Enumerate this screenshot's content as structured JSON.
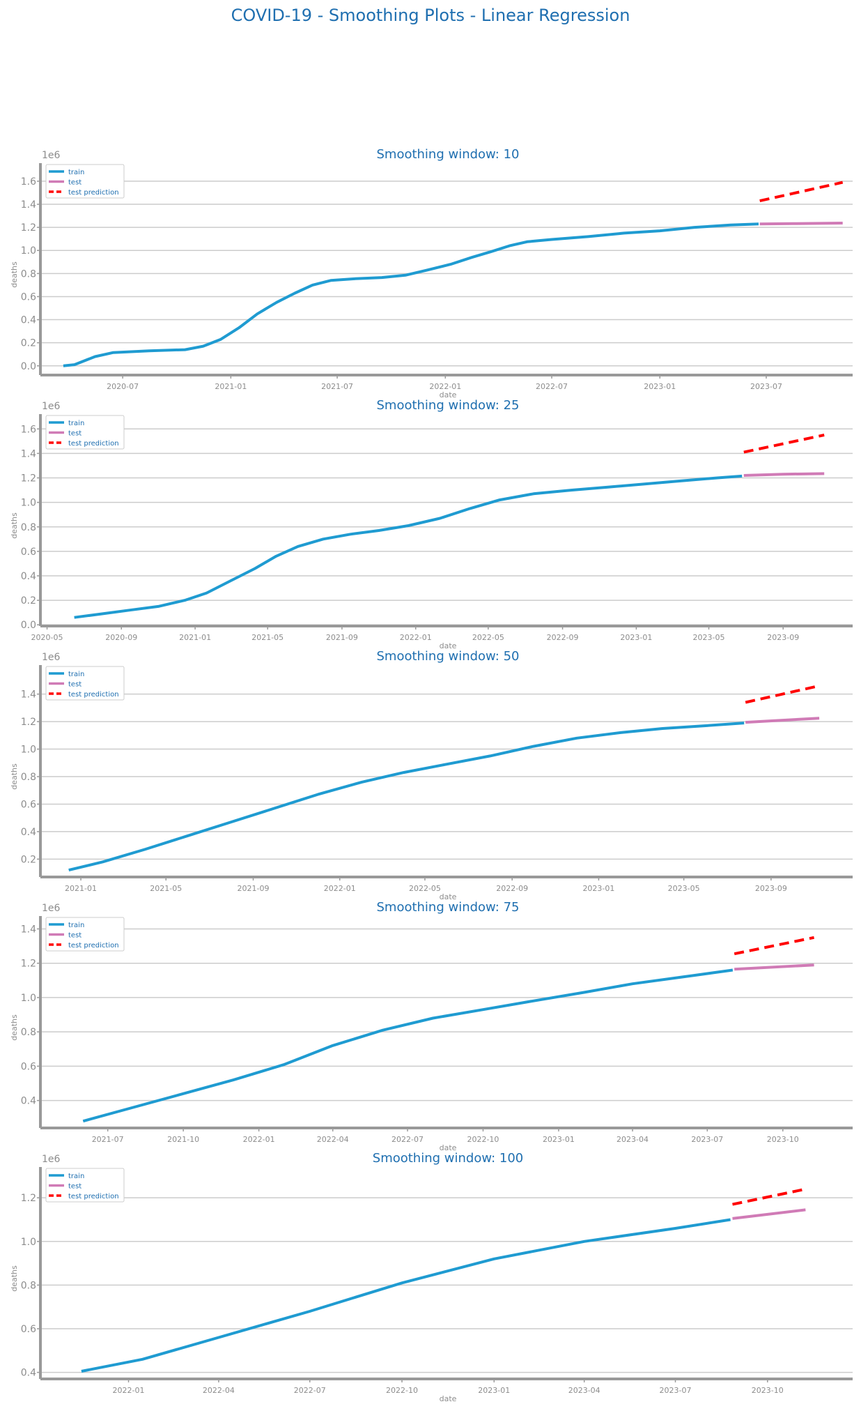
{
  "title": "COVID-19 - Smoothing Plots - Linear Regression",
  "colors": {
    "train": "#1f9bd1",
    "test": "#d07bb6",
    "test_prediction": "#ff0000",
    "title": "#1f6fb0",
    "axis": "#999999",
    "grid": "#cccccc"
  },
  "chart_data": [
    {
      "type": "line",
      "title": "Smoothing window: 10",
      "xlabel": "date",
      "ylabel": "deaths",
      "y_exponent": "1e6",
      "xlim": [
        "2020-02-12",
        "2023-11-25"
      ],
      "ylim": [
        -0.08,
        1.66
      ],
      "x_ticks": [
        "2020-07",
        "2021-01",
        "2021-07",
        "2022-01",
        "2022-07",
        "2023-01",
        "2023-07"
      ],
      "y_ticks": [
        0.0,
        0.2,
        0.4,
        0.6,
        0.8,
        1.0,
        1.2,
        1.4,
        1.6
      ],
      "y_tick_labels": [
        "0.0",
        "0.2",
        "0.4",
        "0.6",
        "0.8",
        "1.0",
        "1.2",
        "1.4",
        "1.6"
      ],
      "grid": "horizontal",
      "legend_position": "top-left",
      "series": [
        {
          "name": "train",
          "style": "solid",
          "points": [
            [
              "2020-03-22",
              0.0
            ],
            [
              "2020-04-10",
              0.01
            ],
            [
              "2020-05-15",
              0.08
            ],
            [
              "2020-06-15",
              0.115
            ],
            [
              "2020-08-15",
              0.13
            ],
            [
              "2020-10-15",
              0.14
            ],
            [
              "2020-11-15",
              0.17
            ],
            [
              "2020-12-15",
              0.23
            ],
            [
              "2021-01-15",
              0.33
            ],
            [
              "2021-02-15",
              0.45
            ],
            [
              "2021-03-20",
              0.55
            ],
            [
              "2021-04-20",
              0.63
            ],
            [
              "2021-05-20",
              0.7
            ],
            [
              "2021-06-20",
              0.74
            ],
            [
              "2021-08-01",
              0.755
            ],
            [
              "2021-09-15",
              0.765
            ],
            [
              "2021-10-25",
              0.785
            ],
            [
              "2021-12-01",
              0.83
            ],
            [
              "2022-01-10",
              0.88
            ],
            [
              "2022-02-15",
              0.94
            ],
            [
              "2022-03-20",
              0.99
            ],
            [
              "2022-04-20",
              1.04
            ],
            [
              "2022-05-20",
              1.075
            ],
            [
              "2022-07-01",
              1.095
            ],
            [
              "2022-09-01",
              1.12
            ],
            [
              "2022-11-01",
              1.15
            ],
            [
              "2023-01-01",
              1.17
            ],
            [
              "2023-03-01",
              1.2
            ],
            [
              "2023-05-01",
              1.22
            ],
            [
              "2023-06-18",
              1.23
            ]
          ]
        },
        {
          "name": "test",
          "style": "solid",
          "points": [
            [
              "2023-06-20",
              1.23
            ],
            [
              "2023-08-15",
              1.232
            ],
            [
              "2023-11-08",
              1.237
            ]
          ]
        },
        {
          "name": "test prediction",
          "style": "dashed",
          "points": [
            [
              "2023-06-20",
              1.43
            ],
            [
              "2023-11-08",
              1.59
            ]
          ]
        }
      ]
    },
    {
      "type": "line",
      "title": "Smoothing window: 25",
      "xlabel": "date",
      "ylabel": "deaths",
      "y_exponent": "1e6",
      "xlim": [
        "2020-04-20",
        "2023-12-25"
      ],
      "ylim": [
        -0.01,
        1.63
      ],
      "x_ticks": [
        "2020-05",
        "2020-09",
        "2021-01",
        "2021-05",
        "2021-09",
        "2022-01",
        "2022-05",
        "2022-09",
        "2023-01",
        "2023-05",
        "2023-09"
      ],
      "y_ticks": [
        0.0,
        0.2,
        0.4,
        0.6,
        0.8,
        1.0,
        1.2,
        1.4,
        1.6
      ],
      "y_tick_labels": [
        "0.0",
        "0.2",
        "0.4",
        "0.6",
        "0.8",
        "1.0",
        "1.2",
        "1.4",
        "1.6"
      ],
      "grid": "horizontal",
      "legend_position": "top-left",
      "series": [
        {
          "name": "train",
          "style": "solid",
          "points": [
            [
              "2020-06-15",
              0.06
            ],
            [
              "2020-08-01",
              0.09
            ],
            [
              "2020-09-15",
              0.12
            ],
            [
              "2020-11-01",
              0.15
            ],
            [
              "2020-12-15",
              0.2
            ],
            [
              "2021-01-20",
              0.26
            ],
            [
              "2021-03-01",
              0.36
            ],
            [
              "2021-04-10",
              0.46
            ],
            [
              "2021-05-15",
              0.56
            ],
            [
              "2021-06-20",
              0.64
            ],
            [
              "2021-08-01",
              0.7
            ],
            [
              "2021-09-15",
              0.74
            ],
            [
              "2021-11-01",
              0.77
            ],
            [
              "2021-12-20",
              0.81
            ],
            [
              "2022-02-10",
              0.87
            ],
            [
              "2022-04-01",
              0.95
            ],
            [
              "2022-05-20",
              1.02
            ],
            [
              "2022-07-15",
              1.07
            ],
            [
              "2022-09-15",
              1.1
            ],
            [
              "2022-11-15",
              1.125
            ],
            [
              "2023-01-15",
              1.15
            ],
            [
              "2023-03-15",
              1.175
            ],
            [
              "2023-05-15",
              1.2
            ],
            [
              "2023-06-25",
              1.215
            ]
          ]
        },
        {
          "name": "test",
          "style": "solid",
          "points": [
            [
              "2023-06-28",
              1.22
            ],
            [
              "2023-09-01",
              1.23
            ],
            [
              "2023-11-08",
              1.235
            ]
          ]
        },
        {
          "name": "test prediction",
          "style": "dashed",
          "points": [
            [
              "2023-06-28",
              1.41
            ],
            [
              "2023-11-08",
              1.55
            ]
          ]
        }
      ]
    },
    {
      "type": "line",
      "title": "Smoothing window: 50",
      "xlabel": "date",
      "ylabel": "deaths",
      "y_exponent": "1e6",
      "xlim": [
        "2020-11-05",
        "2023-12-25"
      ],
      "ylim": [
        0.07,
        1.53
      ],
      "x_ticks": [
        "2021-01",
        "2021-05",
        "2021-09",
        "2022-01",
        "2022-05",
        "2022-09",
        "2023-01",
        "2023-05",
        "2023-09"
      ],
      "y_ticks": [
        0.2,
        0.4,
        0.6,
        0.8,
        1.0,
        1.2,
        1.4
      ],
      "y_tick_labels": [
        "0.2",
        "0.4",
        "0.6",
        "0.8",
        "1.0",
        "1.2",
        "1.4"
      ],
      "grid": "horizontal",
      "legend_position": "top-left",
      "series": [
        {
          "name": "train",
          "style": "solid",
          "points": [
            [
              "2020-12-15",
              0.12
            ],
            [
              "2021-02-01",
              0.18
            ],
            [
              "2021-04-01",
              0.27
            ],
            [
              "2021-06-01",
              0.37
            ],
            [
              "2021-08-01",
              0.47
            ],
            [
              "2021-10-01",
              0.57
            ],
            [
              "2021-12-01",
              0.67
            ],
            [
              "2022-02-01",
              0.76
            ],
            [
              "2022-04-01",
              0.83
            ],
            [
              "2022-06-01",
              0.89
            ],
            [
              "2022-08-01",
              0.95
            ],
            [
              "2022-10-01",
              1.02
            ],
            [
              "2022-12-01",
              1.08
            ],
            [
              "2023-02-01",
              1.12
            ],
            [
              "2023-04-01",
              1.15
            ],
            [
              "2023-06-01",
              1.17
            ],
            [
              "2023-07-25",
              1.19
            ]
          ]
        },
        {
          "name": "test",
          "style": "solid",
          "points": [
            [
              "2023-07-27",
              1.195
            ],
            [
              "2023-11-08",
              1.225
            ]
          ]
        },
        {
          "name": "test prediction",
          "style": "dashed",
          "points": [
            [
              "2023-07-27",
              1.34
            ],
            [
              "2023-11-08",
              1.46
            ]
          ]
        }
      ]
    },
    {
      "type": "line",
      "title": "Smoothing window: 75",
      "xlabel": "date",
      "ylabel": "deaths",
      "y_exponent": "1e6",
      "xlim": [
        "2021-04-10",
        "2023-12-25"
      ],
      "ylim": [
        0.24,
        1.41
      ],
      "x_ticks": [
        "2021-07",
        "2021-10",
        "2022-01",
        "2022-04",
        "2022-07",
        "2022-10",
        "2023-01",
        "2023-04",
        "2023-07",
        "2023-10"
      ],
      "y_ticks": [
        0.4,
        0.6,
        0.8,
        1.0,
        1.2,
        1.4
      ],
      "y_tick_labels": [
        "0.4",
        "0.6",
        "0.8",
        "1.0",
        "1.2",
        "1.4"
      ],
      "grid": "horizontal",
      "legend_position": "top-left",
      "series": [
        {
          "name": "train",
          "style": "solid",
          "points": [
            [
              "2021-06-01",
              0.28
            ],
            [
              "2021-08-01",
              0.36
            ],
            [
              "2021-10-01",
              0.44
            ],
            [
              "2021-12-01",
              0.52
            ],
            [
              "2022-02-01",
              0.61
            ],
            [
              "2022-04-01",
              0.72
            ],
            [
              "2022-06-01",
              0.81
            ],
            [
              "2022-08-01",
              0.88
            ],
            [
              "2022-10-01",
              0.93
            ],
            [
              "2022-12-01",
              0.98
            ],
            [
              "2023-02-01",
              1.03
            ],
            [
              "2023-04-01",
              1.08
            ],
            [
              "2023-06-01",
              1.12
            ],
            [
              "2023-08-01",
              1.16
            ]
          ]
        },
        {
          "name": "test",
          "style": "solid",
          "points": [
            [
              "2023-08-03",
              1.165
            ],
            [
              "2023-11-08",
              1.19
            ]
          ]
        },
        {
          "name": "test prediction",
          "style": "dashed",
          "points": [
            [
              "2023-08-03",
              1.255
            ],
            [
              "2023-11-08",
              1.35
            ]
          ]
        }
      ]
    },
    {
      "type": "line",
      "title": "Smoothing window: 100",
      "xlabel": "date",
      "ylabel": "deaths",
      "y_exponent": "1e6",
      "xlim": [
        "2021-10-05",
        "2023-12-25"
      ],
      "ylim": [
        0.37,
        1.29
      ],
      "x_ticks": [
        "2022-01",
        "2022-04",
        "2022-07",
        "2022-10",
        "2023-01",
        "2023-04",
        "2023-07",
        "2023-10"
      ],
      "y_ticks": [
        0.4,
        0.6,
        0.8,
        1.0,
        1.2
      ],
      "y_tick_labels": [
        "0.4",
        "0.6",
        "0.8",
        "1.0",
        "1.2"
      ],
      "grid": "horizontal",
      "legend_position": "top-left",
      "series": [
        {
          "name": "train",
          "style": "solid",
          "points": [
            [
              "2021-11-15",
              0.405
            ],
            [
              "2022-01-15",
              0.46
            ],
            [
              "2022-04-01",
              0.56
            ],
            [
              "2022-07-01",
              0.68
            ],
            [
              "2022-10-01",
              0.81
            ],
            [
              "2023-01-01",
              0.92
            ],
            [
              "2023-04-01",
              1.0
            ],
            [
              "2023-07-01",
              1.06
            ],
            [
              "2023-08-25",
              1.1
            ]
          ]
        },
        {
          "name": "test",
          "style": "solid",
          "points": [
            [
              "2023-08-27",
              1.105
            ],
            [
              "2023-11-08",
              1.145
            ]
          ]
        },
        {
          "name": "test prediction",
          "style": "dashed",
          "points": [
            [
              "2023-08-27",
              1.17
            ],
            [
              "2023-11-08",
              1.24
            ]
          ]
        }
      ]
    }
  ]
}
